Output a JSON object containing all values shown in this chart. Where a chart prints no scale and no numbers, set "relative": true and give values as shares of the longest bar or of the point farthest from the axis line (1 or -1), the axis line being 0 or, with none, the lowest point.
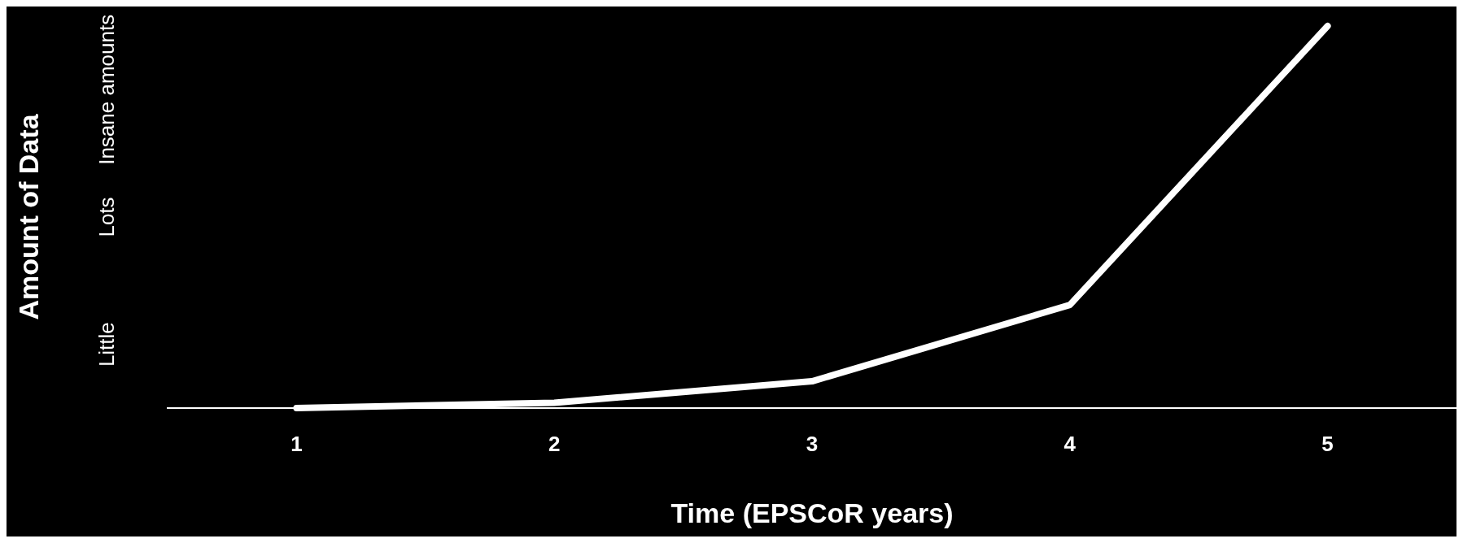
{
  "chart_data": {
    "type": "line",
    "xlabel": "Time (EPSCoR years)",
    "ylabel": "Amount of Data",
    "categories": [
      "1",
      "2",
      "3",
      "4",
      "5"
    ],
    "relative": true,
    "series": [
      {
        "color": "#ffffff",
        "values": [
          0,
          0.014,
          0.07,
          0.27,
          1
        ]
      }
    ],
    "annotations": [
      "Little",
      "Lots",
      "Insane amounts"
    ],
    "marker": "none",
    "line_style": "solid",
    "grid": false,
    "legend": false
  }
}
